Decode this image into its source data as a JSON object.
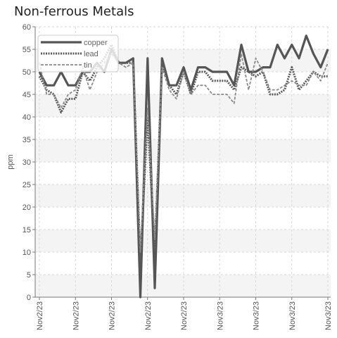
{
  "chart_data": {
    "type": "line",
    "title": "Non-ferrous Metals",
    "ylabel": "ppm",
    "xlabel": "",
    "ylim": [
      0,
      60
    ],
    "yticks": [
      0,
      5,
      10,
      15,
      20,
      25,
      30,
      35,
      40,
      45,
      50,
      55,
      60
    ],
    "xtick_labels": [
      "Nov2/23",
      "Nov2/23",
      "Nov2/23",
      "Nov2/23",
      "Nov2/23",
      "Nov3/23",
      "Nov3/23",
      "Nov3/23",
      "Nov3/23"
    ],
    "xtick_index": [
      0,
      5,
      10,
      15,
      20,
      25,
      30,
      35,
      40
    ],
    "grid": true,
    "legend_position": "top-left",
    "series": [
      {
        "name": "copper",
        "color": "#555555",
        "style": "solid",
        "values": [
          50,
          47,
          47,
          50,
          47,
          47,
          50,
          50,
          52,
          50,
          55,
          52,
          52,
          53,
          0,
          53,
          2,
          53,
          47,
          47,
          51,
          46,
          51,
          51,
          50,
          50,
          50,
          47,
          56,
          50,
          50,
          51,
          51,
          56,
          53,
          56,
          53,
          58,
          54,
          51,
          55
        ]
      },
      {
        "name": "lead",
        "color": "#5a5a5a",
        "style": "dotted",
        "values": [
          49,
          46,
          45,
          41,
          44,
          44,
          50,
          48,
          51,
          53,
          56,
          52,
          52,
          52,
          8,
          40,
          10,
          52,
          47,
          45,
          50,
          45,
          50,
          50,
          48,
          48,
          48,
          46,
          51,
          50,
          49,
          50,
          45,
          45,
          46,
          51,
          46,
          48,
          50,
          49,
          49
        ]
      },
      {
        "name": "tin",
        "color": "#8a8a8a",
        "style": "dashed",
        "values": [
          52,
          45,
          45,
          42,
          45,
          46,
          51,
          46,
          50,
          52,
          54,
          52,
          51,
          52,
          10,
          42,
          13,
          51,
          46,
          44,
          50,
          45,
          47,
          47,
          45,
          45,
          45,
          43,
          54,
          46,
          53,
          50,
          46,
          46,
          47,
          48,
          47,
          47,
          50,
          48,
          52
        ]
      }
    ]
  }
}
